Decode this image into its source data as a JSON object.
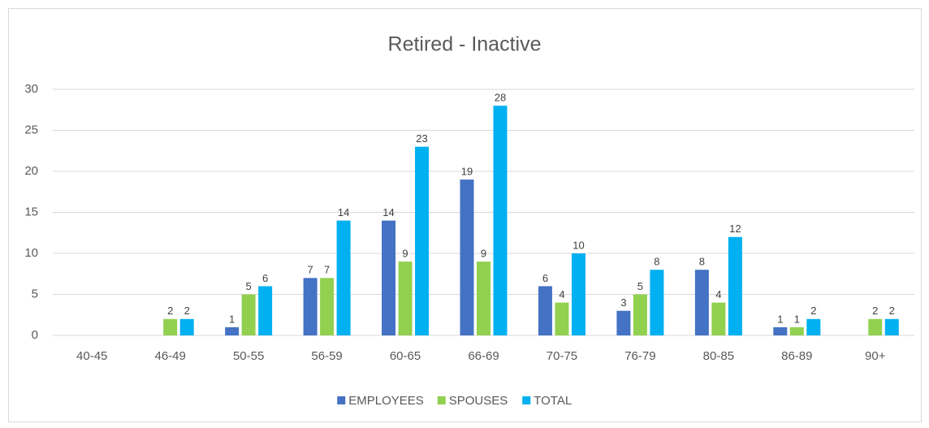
{
  "chart_data": {
    "type": "bar",
    "title": "Retired - Inactive",
    "categories": [
      "40-45",
      "46-49",
      "50-55",
      "56-59",
      "60-65",
      "66-69",
      "70-75",
      "76-79",
      "80-85",
      "86-89",
      "90+"
    ],
    "series": [
      {
        "name": "EMPLOYEES",
        "color": "#4472c4",
        "values": [
          null,
          null,
          1,
          7,
          14,
          19,
          6,
          3,
          8,
          1,
          null
        ]
      },
      {
        "name": "SPOUSES",
        "color": "#92d050",
        "values": [
          null,
          2,
          5,
          7,
          9,
          9,
          4,
          5,
          4,
          1,
          2
        ]
      },
      {
        "name": "TOTAL",
        "color": "#00b0f0",
        "values": [
          null,
          2,
          6,
          14,
          23,
          28,
          10,
          8,
          12,
          2,
          2
        ]
      }
    ],
    "ylim": [
      0,
      30
    ],
    "yticks": [
      0,
      5,
      10,
      15,
      20,
      25,
      30
    ],
    "grid": true,
    "legend": "bottom",
    "data_labels": true
  }
}
